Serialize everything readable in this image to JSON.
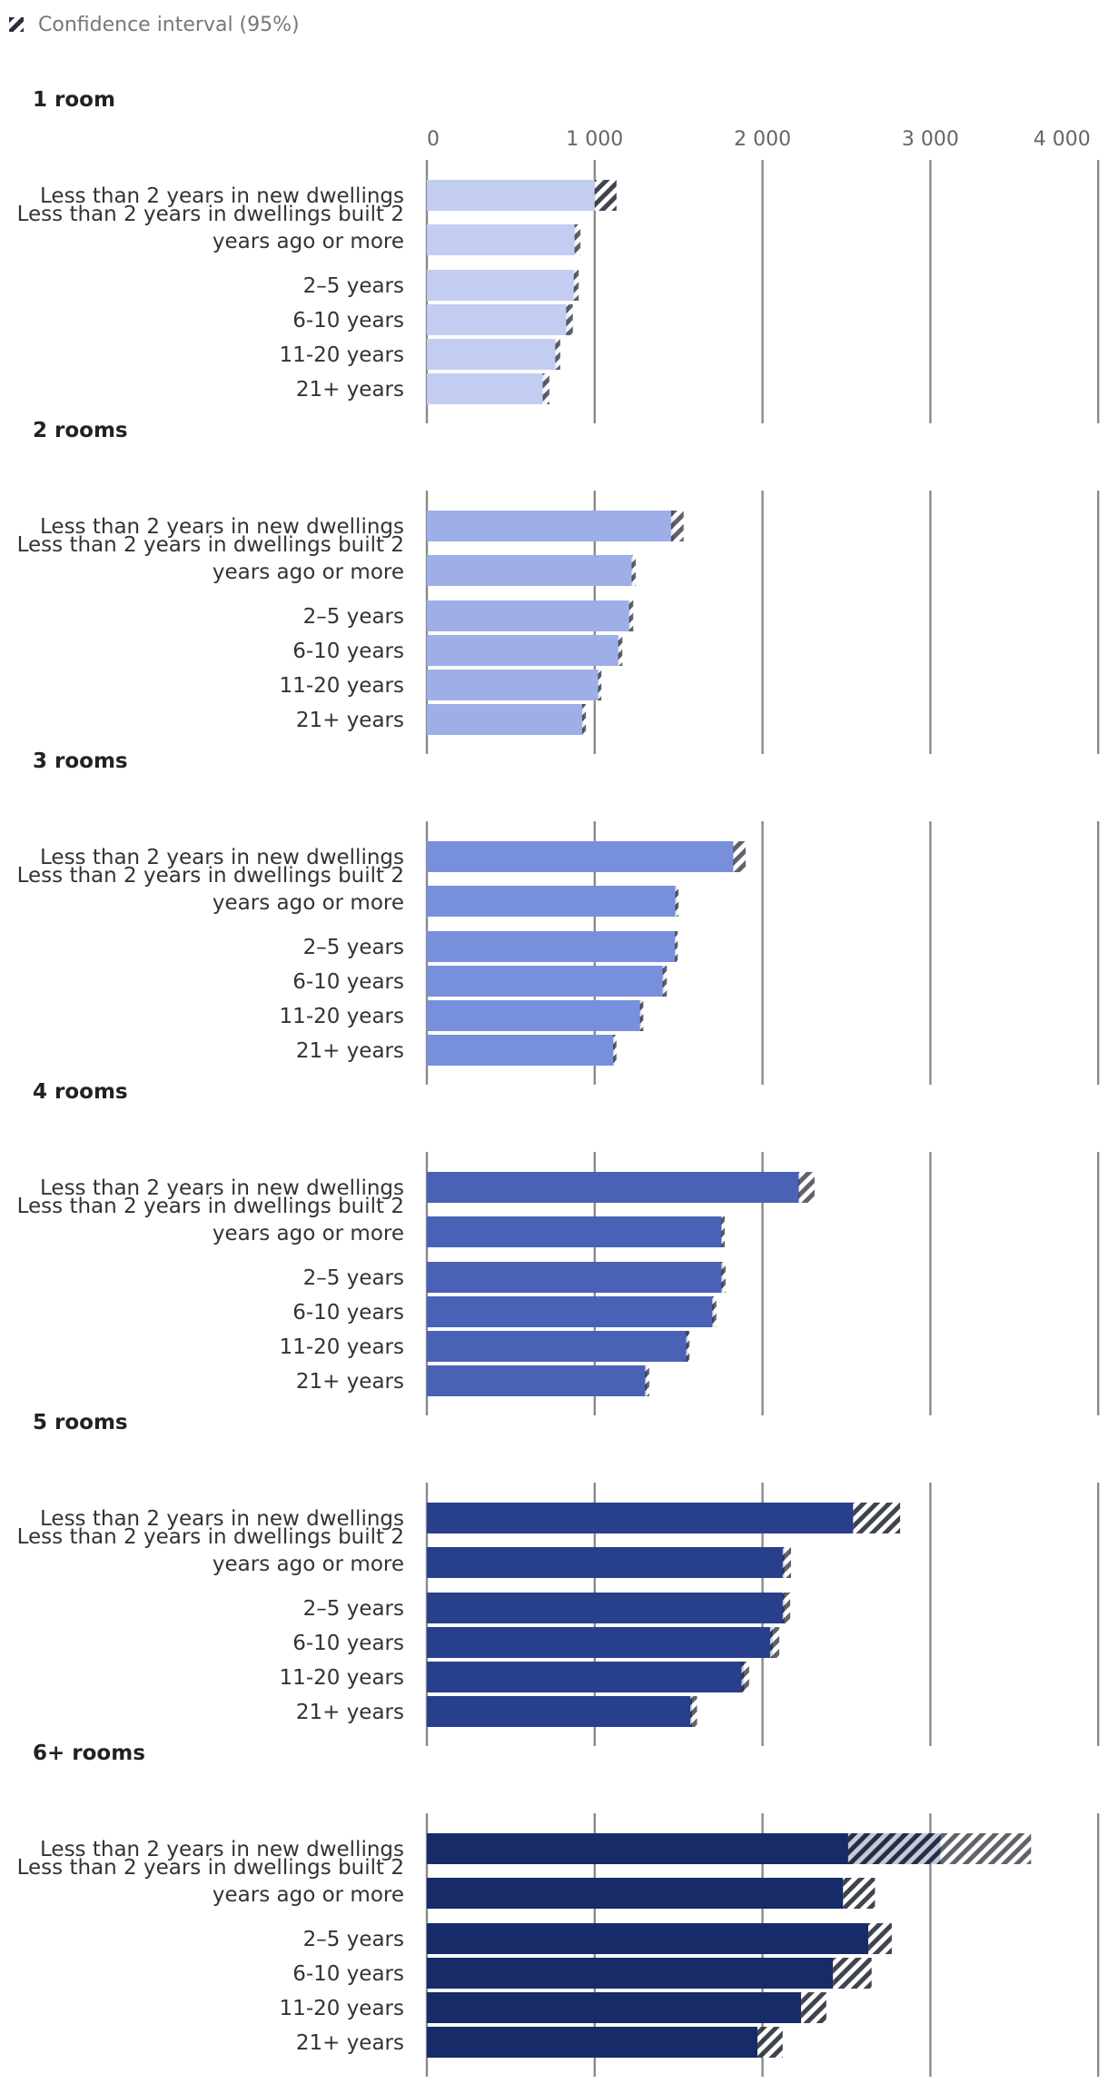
{
  "legend": {
    "label": "Confidence interval (95%)"
  },
  "chart_data": {
    "type": "bar",
    "orientation": "horizontal",
    "title": "",
    "xlabel": "",
    "ylabel": "",
    "xlim": [
      0,
      4000
    ],
    "xticks": [
      0,
      1000,
      2000,
      3000,
      4000
    ],
    "xtick_labels": [
      "0",
      "1 000",
      "2 000",
      "3 000",
      "4 000"
    ],
    "grid": true,
    "legend_position": "top-left",
    "categories": [
      "Less than 2 years in new dwellings",
      "Less than 2 years in dwellings built 2 years ago or more",
      "2–5 years",
      "6-10 years",
      "11-20 years",
      "21+ years"
    ],
    "panels": [
      {
        "title": "1 room",
        "color": "#c3cdf2",
        "values": [
          1000,
          895,
          890,
          850,
          780,
          710
        ],
        "ci_low": [
          1000,
          880,
          875,
          830,
          765,
          690
        ],
        "ci_high": [
          1130,
          915,
          905,
          870,
          795,
          730
        ]
      },
      {
        "title": "2 rooms",
        "color": "#9eaee7",
        "values": [
          1470,
          1230,
          1215,
          1150,
          1030,
          935
        ],
        "ci_low": [
          1455,
          1220,
          1205,
          1140,
          1020,
          925
        ],
        "ci_high": [
          1530,
          1245,
          1230,
          1165,
          1040,
          948
        ]
      },
      {
        "title": "3 rooms",
        "color": "#7890dc",
        "values": [
          1830,
          1490,
          1485,
          1415,
          1280,
          1120
        ],
        "ci_low": [
          1825,
          1480,
          1478,
          1405,
          1270,
          1110
        ],
        "ci_high": [
          1900,
          1500,
          1495,
          1430,
          1290,
          1130
        ]
      },
      {
        "title": "4 rooms",
        "color": "#4a62b6",
        "values": [
          2220,
          1760,
          1765,
          1710,
          1555,
          1310
        ],
        "ci_low": [
          2215,
          1755,
          1755,
          1700,
          1545,
          1300
        ],
        "ci_high": [
          2310,
          1775,
          1780,
          1725,
          1565,
          1325
        ]
      },
      {
        "title": "5 rooms",
        "color": "#283f8c",
        "values": [
          2540,
          2130,
          2130,
          2060,
          1890,
          1580
        ],
        "ci_low": [
          2540,
          2120,
          2120,
          2045,
          1875,
          1570
        ],
        "ci_high": [
          2820,
          2170,
          2165,
          2100,
          1920,
          1610
        ]
      },
      {
        "title": "6+ rooms",
        "color": "#172b68",
        "values": [
          3060,
          2480,
          2630,
          2420,
          2230,
          1970
        ],
        "ci_low": [
          2510,
          2480,
          2630,
          2420,
          2230,
          1970
        ],
        "ci_high": [
          3600,
          2670,
          2770,
          2650,
          2380,
          2120
        ]
      }
    ]
  }
}
